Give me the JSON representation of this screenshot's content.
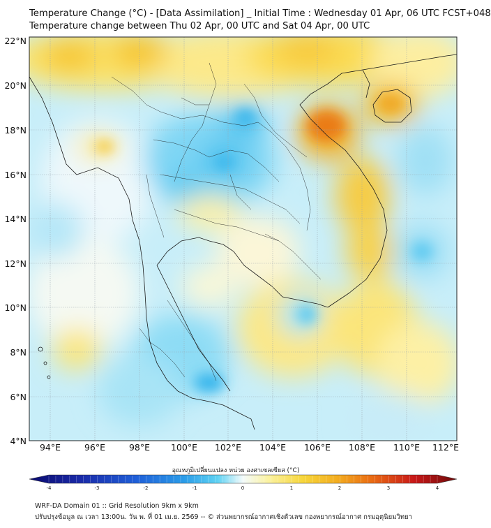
{
  "title_line1": "Temperature Change (°C) - [Data Assimilation] _ Initial Time : Wednesday 01 Apr, 06 UTC FCST+048",
  "title_line2": "Temperature change between Thu 02 Apr, 00 UTC and Sat 04 Apr, 00 UTC",
  "axes": {
    "lat_labels": [
      "22°N",
      "20°N",
      "18°N",
      "16°N",
      "14°N",
      "12°N",
      "10°N",
      "8°N",
      "6°N",
      "4°N"
    ],
    "lon_labels": [
      "94°E",
      "96°E",
      "98°E",
      "100°E",
      "102°E",
      "104°E",
      "106°E",
      "108°E",
      "110°E",
      "112°E"
    ]
  },
  "colorbar": {
    "title": "อุณหภูมิเปลี่ยนแปลง หน่วย องศาเซลเซียส (°C)",
    "ticks": [
      "-4",
      "-3",
      "-2",
      "-1",
      "0",
      "1",
      "2",
      "3",
      "4"
    ],
    "colors": [
      "#0a0a6e",
      "#1a2aa8",
      "#1f5fd8",
      "#2a9be8",
      "#45c8f0",
      "#a8e6f6",
      "#f4fbfb",
      "#fbf7c0",
      "#f9e66a",
      "#f6c624",
      "#f19a1d",
      "#e85a12",
      "#c81818",
      "#7a0c0c"
    ]
  },
  "footer": {
    "line1": "WRF-DA Domain 01 :: Grid Resolution 9km x 9km",
    "line2": "ปรับปรุงข้อมูล ณ เวลา 13:00น. วัน พ. ที่ 01 เม.ย. 2569 -- © ส่วนพยากรณ์อากาศเชิงตัวเลข กองพยากรณ์อากาศ กรมอุตุนิยมวิทยา"
  }
}
